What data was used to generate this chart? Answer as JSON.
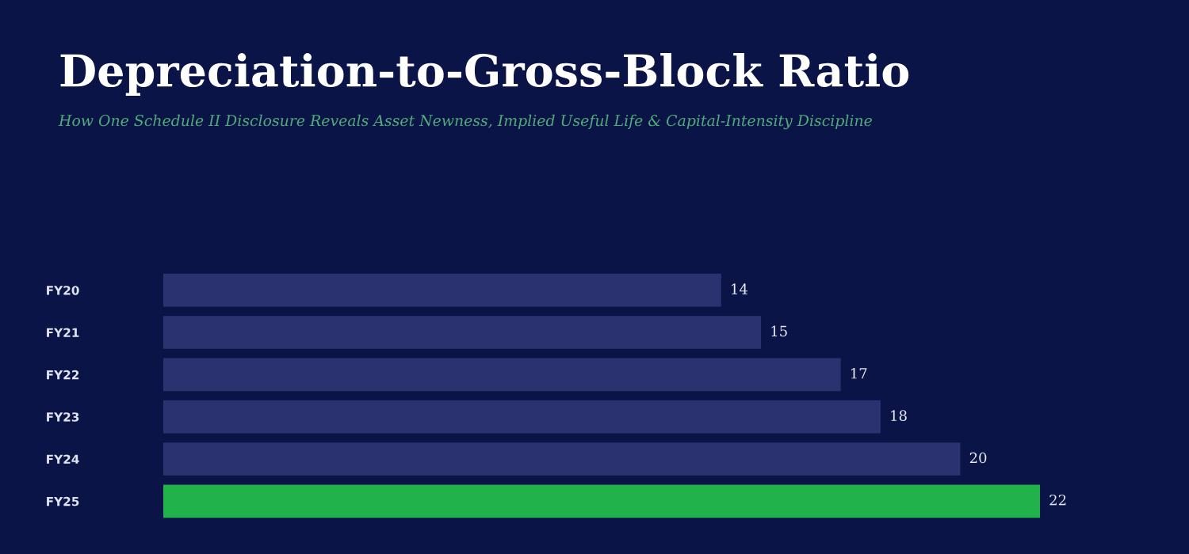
{
  "chart_data": {
    "type": "bar",
    "orientation": "horizontal",
    "title": "Depreciation-to-Gross-Block Ratio",
    "subtitle": "How One Schedule II Disclosure Reveals Asset Newness, Implied Useful Life & Capital-Intensity Discipline",
    "categories": [
      "FY20",
      "FY21",
      "FY22",
      "FY23",
      "FY24",
      "FY25"
    ],
    "values": [
      14,
      15,
      17,
      18,
      20,
      22
    ],
    "colors": [
      "#2a3370",
      "#2a3370",
      "#2a3370",
      "#2a3370",
      "#2a3370",
      "#22b24c"
    ],
    "data_labels": true,
    "grid": false,
    "legend": false
  }
}
